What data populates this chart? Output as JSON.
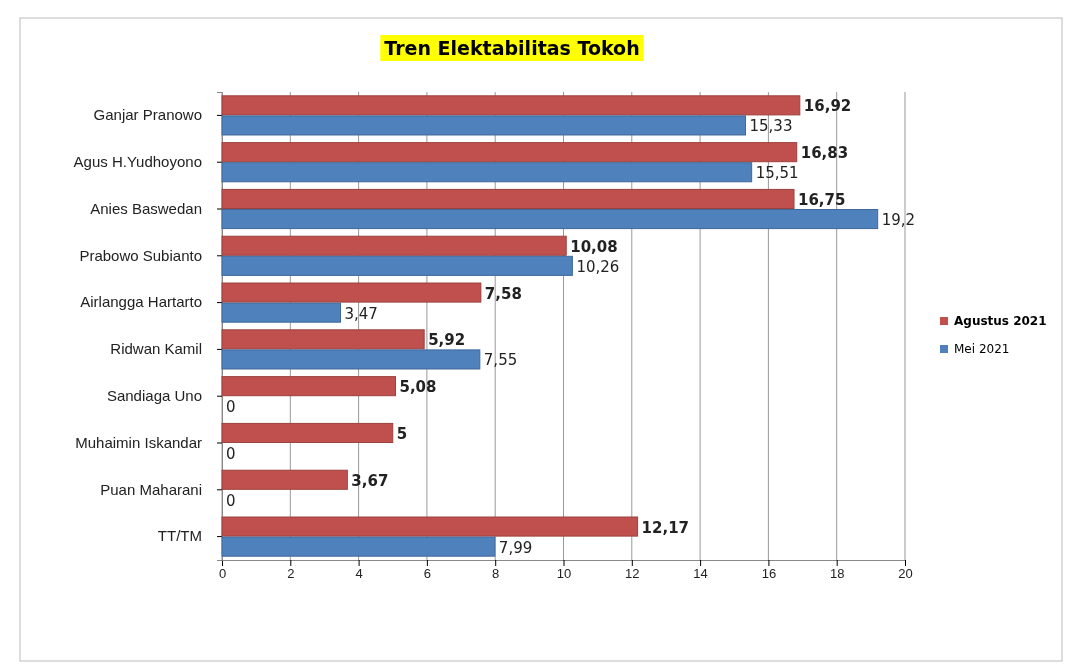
{
  "chart_data": {
    "type": "bar",
    "orientation": "horizontal",
    "title": "Tren Elektabilitas Tokoh",
    "categories": [
      "Ganjar Pranowo",
      "Agus H.Yudhoyono",
      "Anies Baswedan",
      "Prabowo Subianto",
      "Airlangga Hartarto",
      "Ridwan Kamil",
      "Sandiaga Uno",
      "Muhaimin  Iskandar",
      "Puan Maharani",
      "TT/TM"
    ],
    "series": [
      {
        "name": "Agustus 2021",
        "color": "#c0504d",
        "values": [
          16.92,
          16.83,
          16.75,
          10.08,
          7.58,
          5.92,
          5.08,
          5,
          3.67,
          12.17
        ],
        "value_labels": [
          "16,92",
          "16,83",
          "16,75",
          "10,08",
          "7,58",
          "5,92",
          "5,08",
          "5",
          "3,67",
          "12,17"
        ]
      },
      {
        "name": "Mei 2021",
        "color": "#4f81bd",
        "values": [
          15.33,
          15.51,
          19.2,
          10.26,
          3.47,
          7.55,
          0,
          0,
          0,
          7.99
        ],
        "value_labels": [
          "15,33",
          "15,51",
          "19,2",
          "10,26",
          "3,47",
          "7,55",
          "0",
          "0",
          "0",
          "7,99"
        ]
      }
    ],
    "xlim": [
      0,
      20
    ],
    "xticks": [
      0,
      2,
      4,
      6,
      8,
      10,
      12,
      14,
      16,
      18,
      20
    ],
    "grid": "x",
    "legend": "right"
  }
}
